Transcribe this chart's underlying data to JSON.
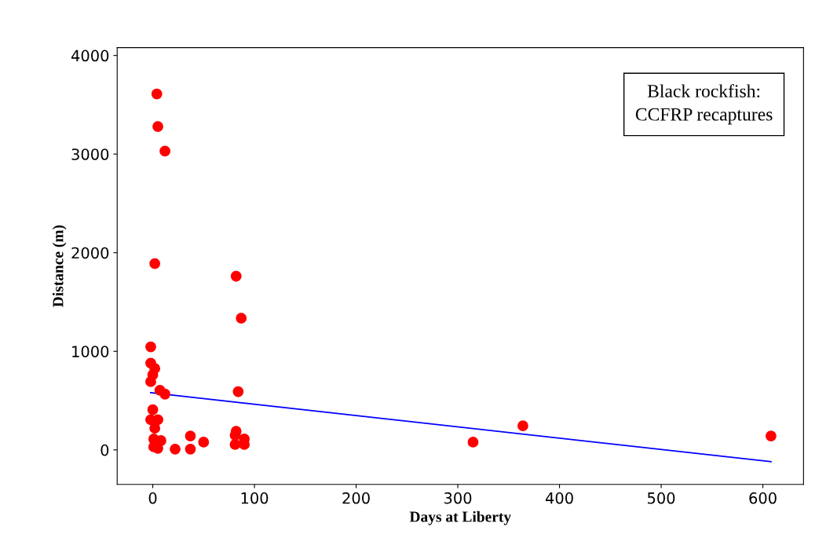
{
  "chart_data": {
    "type": "scatter",
    "xlabel": "Days at Liberty",
    "ylabel": "Distance (m)",
    "annotations": [
      "Black rockfish:\nCCFRP recaptures"
    ],
    "xlim": [
      -35,
      640
    ],
    "ylim": [
      -350,
      4080
    ],
    "xticks": [
      0,
      100,
      200,
      300,
      400,
      500,
      600
    ],
    "yticks": [
      0,
      1000,
      2000,
      3000,
      4000
    ],
    "grid": false,
    "series": [
      {
        "color": "#ff0000",
        "marker": "circle",
        "x": [
          4,
          5,
          12,
          2,
          -2,
          -2,
          2,
          0,
          -2,
          7,
          12,
          0,
          -2,
          5,
          2,
          1,
          8,
          1,
          5,
          22,
          37,
          37,
          50,
          82,
          81,
          90,
          81,
          90,
          82,
          87,
          84,
          315,
          364,
          608
        ],
        "values": [
          3610,
          3280,
          3030,
          1890,
          1045,
          880,
          825,
          762,
          692,
          605,
          566,
          408,
          306,
          306,
          220,
          110,
          94,
          31,
          16,
          8,
          141,
          8,
          79,
          189,
          149,
          110,
          55,
          55,
          1761,
          1336,
          590,
          79,
          244,
          141
        ]
      },
      {
        "type": "line",
        "marker": "none",
        "color": "#0000ff",
        "x": [
          -2,
          608
        ],
        "values": [
          580,
          -120
        ]
      }
    ]
  }
}
